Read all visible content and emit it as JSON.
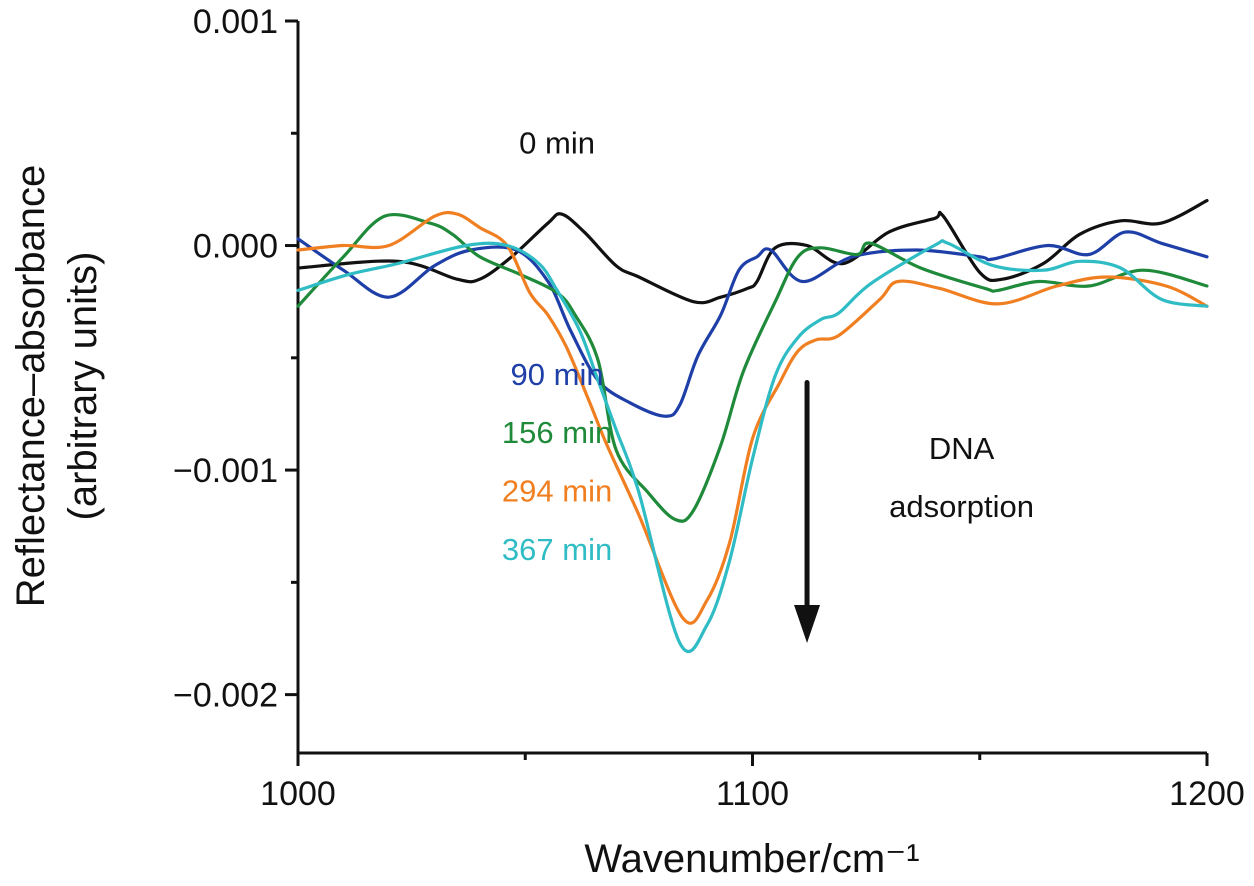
{
  "chart_data": {
    "type": "line",
    "title": "",
    "xlabel": "Wavenumber/cm⁻¹",
    "ylabel_line1": "Reflectance–absorbance",
    "ylabel_line2": "(arbitrary units)",
    "xlim": [
      1000,
      1200
    ],
    "ylim": [
      -0.00226,
      0.001
    ],
    "x_ticks": [
      1000,
      1100,
      1200
    ],
    "x_tick_labels": [
      "1000",
      "1100",
      "1200"
    ],
    "x_minor_ticks": [
      1050,
      1150
    ],
    "y_ticks": [
      0.001,
      0.0,
      -0.001,
      -0.002
    ],
    "y_tick_labels": [
      "0.001",
      "0.000",
      "−0.001",
      "−0.002"
    ],
    "y_minor_ticks": [
      0.0005,
      -0.0005,
      -0.0015
    ],
    "grid": false,
    "legend": "none (inline labels)",
    "series": [
      {
        "name": "0 min",
        "color": "#111111",
        "x": [
          1000,
          1022,
          1035,
          1040,
          1047,
          1055,
          1058,
          1063,
          1070,
          1075,
          1087,
          1093,
          1099,
          1101,
          1105,
          1112,
          1120,
          1130,
          1140,
          1142,
          1150,
          1155,
          1164,
          1172,
          1181,
          1190,
          1200
        ],
        "y": [
          -0.0001,
          -7e-05,
          -0.00015,
          -0.00015,
          -5e-05,
          0.0001,
          0.00014,
          6e-05,
          -9e-05,
          -0.00014,
          -0.00025,
          -0.00023,
          -0.00019,
          -0.00016,
          -1e-05,
          0.0,
          -8e-05,
          6e-05,
          0.00012,
          0.00013,
          -0.00012,
          -0.00015,
          -8e-05,
          5e-05,
          0.00011,
          0.0001,
          0.0002
        ]
      },
      {
        "name": "90 min",
        "color": "#1f3fa8",
        "x": [
          1000,
          1010,
          1020,
          1030,
          1038,
          1048,
          1055,
          1060,
          1066,
          1073,
          1080.7,
          1084,
          1088,
          1093,
          1097,
          1101,
          1104,
          1111,
          1122,
          1136,
          1150,
          1153,
          1165,
          1174,
          1182,
          1190,
          1200
        ],
        "y": [
          3e-05,
          -0.00011,
          -0.00023,
          -9e-05,
          -2e-05,
          -2e-05,
          -0.00016,
          -0.00038,
          -0.0006,
          -0.0007,
          -0.00076,
          -0.00071,
          -0.00049,
          -0.00031,
          -0.00011,
          -5e-05,
          -2e-05,
          -0.00016,
          -5e-05,
          -2e-05,
          -5e-05,
          -6e-05,
          0.0,
          -4e-05,
          6e-05,
          1e-05,
          -5e-05
        ]
      },
      {
        "name": "156 min",
        "color": "#1e8a3a",
        "x": [
          1000,
          1010,
          1019,
          1029,
          1034,
          1040,
          1049,
          1057,
          1061,
          1066,
          1070,
          1077,
          1083,
          1087,
          1093,
          1098,
          1105,
          1110,
          1115,
          1123,
          1126,
          1137,
          1151,
          1154,
          1163,
          1174,
          1186,
          1200
        ],
        "y": [
          -0.00027,
          -5e-05,
          0.00013,
          0.0001,
          5e-05,
          -5e-05,
          -0.00013,
          -0.00021,
          -0.00031,
          -0.00051,
          -0.00091,
          -0.0011,
          -0.00122,
          -0.00118,
          -0.00089,
          -0.00056,
          -0.00025,
          -5e-05,
          -1e-05,
          -4e-05,
          1e-05,
          -0.0001,
          -0.00019,
          -0.0002,
          -0.00016,
          -0.00018,
          -0.00011,
          -0.00018
        ]
      },
      {
        "name": "294 min",
        "color": "#f07f22",
        "x": [
          1000,
          1010,
          1020,
          1030,
          1035,
          1040,
          1046,
          1051,
          1055,
          1059,
          1064,
          1068,
          1075,
          1084.7,
          1090,
          1095,
          1100,
          1106,
          1110,
          1114,
          1119,
          1128,
          1132,
          1141,
          1154,
          1167,
          1178,
          1191,
          1200
        ],
        "y": [
          -2e-05,
          0.0,
          0.0,
          0.00013,
          0.00014,
          8e-05,
          0.0,
          -0.00021,
          -0.00031,
          -0.00045,
          -0.00069,
          -0.00089,
          -0.0012,
          -0.00166,
          -0.00158,
          -0.00132,
          -0.00086,
          -0.00061,
          -0.00047,
          -0.00042,
          -0.0004,
          -0.00024,
          -0.00016,
          -0.00019,
          -0.00026,
          -0.00018,
          -0.00014,
          -0.00018,
          -0.00027
        ]
      },
      {
        "name": "367 min",
        "color": "#2fbcc4",
        "x": [
          1000,
          1011,
          1022,
          1037,
          1046,
          1053,
          1057,
          1062,
          1066,
          1070,
          1075,
          1084,
          1090,
          1095,
          1100,
          1105,
          1110,
          1115,
          1119,
          1126,
          1140,
          1143,
          1153,
          1164,
          1172,
          1181,
          1190,
          1200
        ],
        "y": [
          -0.0002,
          -0.00013,
          -8e-05,
          0.0,
          0.0,
          -8e-05,
          -0.0002,
          -0.00038,
          -0.0006,
          -0.00082,
          -0.0011,
          -0.00177,
          -0.00169,
          -0.0014,
          -0.00095,
          -0.00058,
          -0.00041,
          -0.00033,
          -0.0003,
          -0.00017,
          0.0,
          1e-05,
          -9e-05,
          -0.00011,
          -7e-05,
          -0.0001,
          -0.00024,
          -0.00027
        ]
      }
    ],
    "annotations": [
      {
        "text": "0 min",
        "color": "#111111",
        "x": 1057,
        "y": 0.00041
      },
      {
        "text": "90 min",
        "color": "#1f3fa8",
        "x": 1057,
        "y": -0.00062
      },
      {
        "text": "156 min",
        "color": "#1e8a3a",
        "x": 1057,
        "y": -0.00088
      },
      {
        "text": "294 min",
        "color": "#f07f22",
        "x": 1057,
        "y": -0.00114
      },
      {
        "text": "367 min",
        "color": "#2fbcc4",
        "x": 1057,
        "y": -0.0014
      },
      {
        "text": "DNA",
        "color": "#111111",
        "x": 1146,
        "y": -0.00095
      },
      {
        "text": "adsorption",
        "color": "#111111",
        "x": 1146,
        "y": -0.00121
      }
    ],
    "arrow": {
      "label": "DNA adsorption",
      "direction": "down",
      "x": 1112,
      "y_from": -0.00061,
      "y_to": -0.00177,
      "color": "#111111"
    }
  }
}
